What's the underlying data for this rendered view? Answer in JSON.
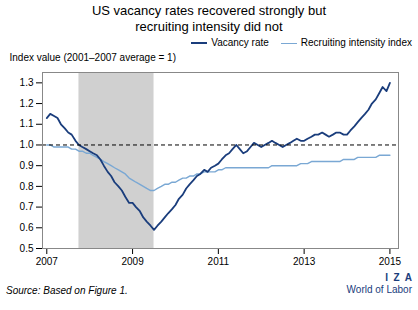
{
  "chart_data": {
    "type": "line",
    "title": "US vacancy rates recovered strongly but\nrecruiting intensity did not",
    "ylabel": "Index value (2001–2007 average = 1)",
    "annotations": [
      "Source: Based on Figure 1.",
      "I  Z  A",
      "World of Labor"
    ],
    "legend": "upper right",
    "grid": false,
    "xlim": [
      2006.9,
      2015.2
    ],
    "ylim": [
      0.5,
      1.35
    ],
    "xticks": [
      2007,
      2009,
      2011,
      2013,
      2015
    ],
    "yticks": [
      0.5,
      0.6,
      0.7,
      0.8,
      0.9,
      {
        "value": 1.0,
        "label": "1.0"
      },
      1.1,
      1.2,
      1.3
    ],
    "shaded_span": {
      "x": [
        2007.75,
        2009.5
      ],
      "color": "#c8c8c8"
    },
    "reference_line": {
      "y": 1.0,
      "color": "#000000",
      "line_style": "dashed"
    },
    "x": [
      2007.0,
      2007.08,
      2007.17,
      2007.25,
      2007.33,
      2007.42,
      2007.5,
      2007.58,
      2007.67,
      2007.75,
      2007.83,
      2007.92,
      2008.0,
      2008.08,
      2008.17,
      2008.25,
      2008.33,
      2008.42,
      2008.5,
      2008.58,
      2008.67,
      2008.75,
      2008.83,
      2008.92,
      2009.0,
      2009.08,
      2009.17,
      2009.25,
      2009.33,
      2009.42,
      2009.5,
      2009.58,
      2009.67,
      2009.75,
      2009.83,
      2009.92,
      2010.0,
      2010.08,
      2010.17,
      2010.25,
      2010.33,
      2010.42,
      2010.5,
      2010.58,
      2010.67,
      2010.75,
      2010.83,
      2010.92,
      2011.0,
      2011.08,
      2011.17,
      2011.25,
      2011.33,
      2011.42,
      2011.5,
      2011.58,
      2011.67,
      2011.75,
      2011.83,
      2011.92,
      2012.0,
      2012.08,
      2012.17,
      2012.25,
      2012.33,
      2012.42,
      2012.5,
      2012.58,
      2012.67,
      2012.75,
      2012.83,
      2012.92,
      2013.0,
      2013.08,
      2013.17,
      2013.25,
      2013.33,
      2013.42,
      2013.5,
      2013.58,
      2013.67,
      2013.75,
      2013.83,
      2013.92,
      2014.0,
      2014.08,
      2014.17,
      2014.25,
      2014.33,
      2014.42,
      2014.5,
      2014.58,
      2014.67,
      2014.75,
      2014.83,
      2014.92,
      2015.0
    ],
    "series": [
      {
        "name": "Vacancy rate",
        "color": "#1a3d7c",
        "values": [
          1.13,
          1.15,
          1.14,
          1.13,
          1.1,
          1.08,
          1.06,
          1.05,
          1.02,
          1.0,
          0.99,
          0.98,
          0.97,
          0.96,
          0.95,
          0.93,
          0.9,
          0.87,
          0.85,
          0.82,
          0.8,
          0.78,
          0.75,
          0.72,
          0.72,
          0.7,
          0.68,
          0.65,
          0.63,
          0.61,
          0.59,
          0.61,
          0.63,
          0.65,
          0.67,
          0.69,
          0.71,
          0.74,
          0.76,
          0.79,
          0.81,
          0.83,
          0.85,
          0.86,
          0.88,
          0.87,
          0.89,
          0.9,
          0.91,
          0.93,
          0.95,
          0.96,
          0.98,
          1.0,
          0.98,
          0.96,
          0.97,
          0.99,
          1.01,
          1.0,
          0.99,
          1.0,
          1.01,
          1.02,
          1.01,
          1.0,
          0.99,
          1.0,
          1.01,
          1.02,
          1.03,
          1.02,
          1.02,
          1.03,
          1.04,
          1.05,
          1.05,
          1.06,
          1.05,
          1.04,
          1.05,
          1.06,
          1.06,
          1.05,
          1.05,
          1.07,
          1.09,
          1.11,
          1.13,
          1.15,
          1.17,
          1.2,
          1.22,
          1.25,
          1.28,
          1.26,
          1.3
        ]
      },
      {
        "name": "Recruiting intensity index",
        "color": "#7aa8d4",
        "values": [
          1.0,
          1.0,
          0.99,
          0.99,
          0.99,
          0.99,
          0.99,
          0.98,
          0.98,
          0.97,
          0.97,
          0.96,
          0.96,
          0.95,
          0.94,
          0.93,
          0.92,
          0.91,
          0.9,
          0.89,
          0.88,
          0.87,
          0.86,
          0.84,
          0.83,
          0.82,
          0.81,
          0.8,
          0.79,
          0.78,
          0.78,
          0.79,
          0.8,
          0.81,
          0.81,
          0.82,
          0.82,
          0.83,
          0.84,
          0.84,
          0.85,
          0.85,
          0.86,
          0.86,
          0.87,
          0.87,
          0.87,
          0.87,
          0.88,
          0.88,
          0.89,
          0.89,
          0.89,
          0.89,
          0.89,
          0.89,
          0.89,
          0.89,
          0.89,
          0.89,
          0.89,
          0.89,
          0.89,
          0.9,
          0.9,
          0.9,
          0.9,
          0.9,
          0.9,
          0.9,
          0.9,
          0.91,
          0.91,
          0.91,
          0.92,
          0.92,
          0.92,
          0.92,
          0.92,
          0.92,
          0.92,
          0.92,
          0.92,
          0.93,
          0.93,
          0.93,
          0.93,
          0.94,
          0.94,
          0.94,
          0.94,
          0.94,
          0.94,
          0.95,
          0.95,
          0.95,
          0.95
        ]
      }
    ]
  }
}
